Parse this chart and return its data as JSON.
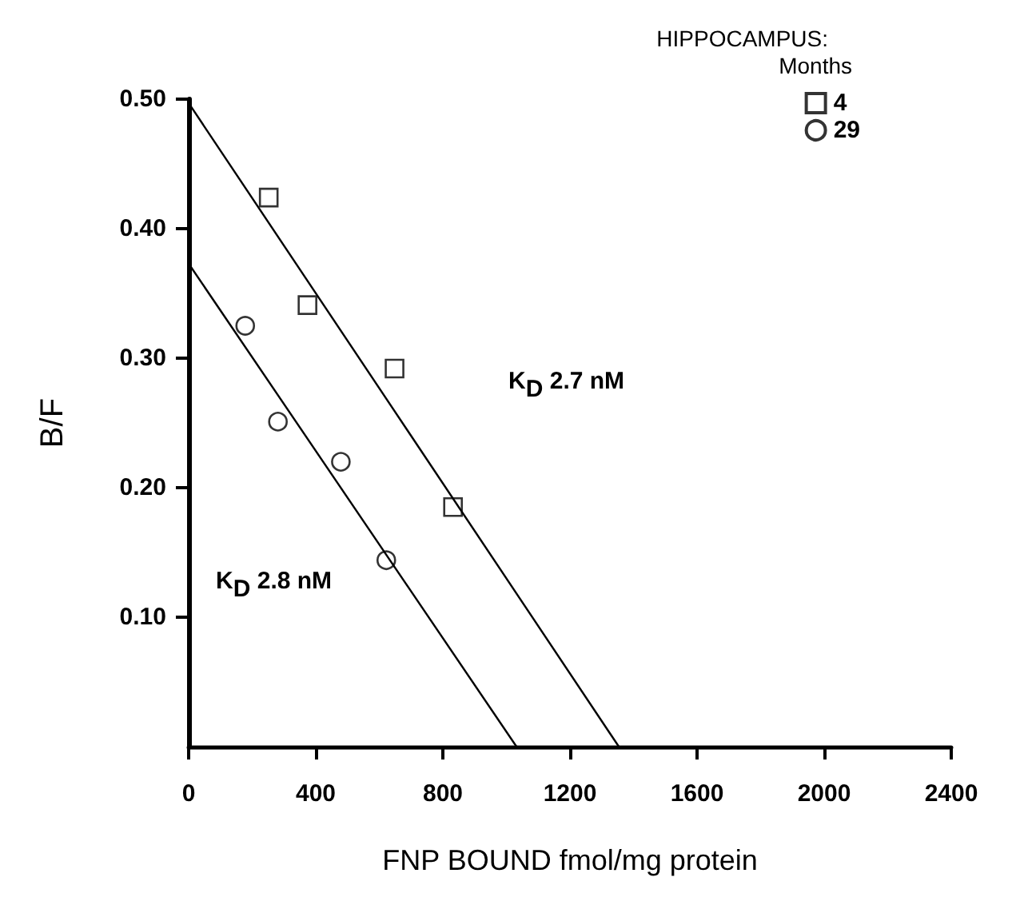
{
  "chart_data": {
    "type": "scatter",
    "title": "HIPPOCAMPUS:",
    "xlabel": "FNP BOUND fmol/mg protein",
    "ylabel": "B/F",
    "legend_title": "Months",
    "legend": "top right",
    "grid": false,
    "xlim": [
      0,
      2400
    ],
    "xticks": [
      0,
      400,
      800,
      1200,
      1600,
      2000,
      2400
    ],
    "ylim": [
      0,
      0.5
    ],
    "yticks": [
      {
        "value": 0.1,
        "label": "0.10"
      },
      {
        "value": 0.2,
        "label": "0.20"
      },
      {
        "value": 0.3,
        "label": "0.30"
      },
      {
        "value": 0.4,
        "label": "0.40"
      },
      {
        "value": 0.5,
        "label": "0.50"
      }
    ],
    "series": [
      {
        "name": "4",
        "color": "#000000",
        "marker": "square",
        "x": [
          252,
          374,
          648,
          832
        ],
        "values": [
          0.424,
          0.341,
          0.292,
          0.185
        ]
      },
      {
        "name": "29",
        "color": "#000000",
        "marker": "circle",
        "x": [
          178,
          281,
          479,
          622
        ],
        "values": [
          0.325,
          0.251,
          0.22,
          0.144
        ]
      },
      {
        "type": "line",
        "color": "#000000",
        "marker": "none",
        "x": [
          0,
          1354
        ],
        "values": [
          0.497,
          0
        ]
      },
      {
        "type": "line",
        "color": "#000000",
        "marker": "none",
        "x": [
          0,
          1032
        ],
        "values": [
          0.373,
          0
        ]
      }
    ],
    "annotations": [
      "K$_{D}$ 2.7 nM",
      "K$_{D}$ 2.8 nM"
    ]
  }
}
